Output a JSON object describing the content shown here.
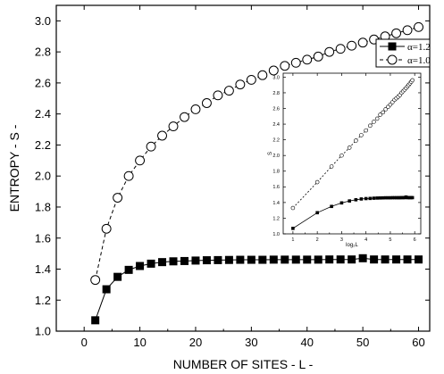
{
  "chart_data": [
    {
      "id": "main",
      "type": "line",
      "title": "",
      "xlabel": "NUMBER OF SITES - L -",
      "ylabel": "ENTROPY  - S -",
      "xlim": [
        -5,
        62
      ],
      "ylim": [
        1.0,
        3.1
      ],
      "xticks": [
        0,
        10,
        20,
        30,
        40,
        50,
        60
      ],
      "yticks": [
        1.0,
        1.2,
        1.4,
        1.6,
        1.8,
        2.0,
        2.2,
        2.4,
        2.6,
        2.8,
        3.0
      ],
      "ytick_labels": [
        "1.0",
        "1.2",
        "1.4",
        "1.6",
        "1.8",
        "2.0",
        "2.2",
        "2.4",
        "2.6",
        "2.8",
        "3.0"
      ],
      "grid": false,
      "legend": "top-right",
      "series": [
        {
          "name": "α=1.2",
          "marker": "filled-square",
          "line": "solid",
          "x": [
            2,
            4,
            6,
            8,
            10,
            12,
            14,
            16,
            18,
            20,
            22,
            24,
            26,
            28,
            30,
            32,
            34,
            36,
            38,
            40,
            42,
            44,
            46,
            48,
            50,
            52,
            54,
            56,
            58,
            60
          ],
          "y": [
            1.07,
            1.27,
            1.35,
            1.395,
            1.42,
            1.435,
            1.445,
            1.45,
            1.452,
            1.455,
            1.457,
            1.458,
            1.459,
            1.46,
            1.46,
            1.46,
            1.461,
            1.461,
            1.461,
            1.461,
            1.461,
            1.462,
            1.462,
            1.462,
            1.47,
            1.462,
            1.462,
            1.462,
            1.462,
            1.462
          ]
        },
        {
          "name": "α=1.0",
          "marker": "open-circle",
          "line": "dashed",
          "x": [
            2,
            4,
            6,
            8,
            10,
            12,
            14,
            16,
            18,
            20,
            22,
            24,
            26,
            28,
            30,
            32,
            34,
            36,
            38,
            40,
            42,
            44,
            46,
            48,
            50,
            52,
            54,
            56,
            58,
            60
          ],
          "y": [
            1.33,
            1.66,
            1.86,
            2.0,
            2.1,
            2.19,
            2.26,
            2.32,
            2.38,
            2.43,
            2.47,
            2.52,
            2.55,
            2.59,
            2.62,
            2.65,
            2.68,
            2.71,
            2.73,
            2.75,
            2.77,
            2.8,
            2.82,
            2.84,
            2.86,
            2.88,
            2.9,
            2.92,
            2.94,
            2.96
          ]
        }
      ]
    },
    {
      "id": "inset",
      "type": "line",
      "title": "",
      "xlabel": "log₂L",
      "ylabel": "S",
      "xlim": [
        0.6,
        6.25
      ],
      "ylim": [
        1.0,
        3.05
      ],
      "xticks": [
        1,
        2,
        3,
        4,
        5,
        6
      ],
      "yticks": [
        1.0,
        1.2,
        1.4,
        1.6,
        1.8,
        2.0,
        2.2,
        2.4,
        2.6,
        2.8,
        3.0
      ],
      "ytick_labels": [
        "1.0",
        "1.2",
        "1.4",
        "1.6",
        "1.8",
        "2.0",
        "2.2",
        "2.4",
        "2.6",
        "2.8",
        "3.0"
      ],
      "grid": false,
      "series": [
        {
          "marker": "filled-square",
          "line": "solid",
          "x": [
            1.0,
            2.0,
            2.585,
            3.0,
            3.322,
            3.585,
            3.807,
            4.0,
            4.17,
            4.322,
            4.459,
            4.585,
            4.7,
            4.807,
            4.907,
            5.0,
            5.087,
            5.17,
            5.248,
            5.322,
            5.392,
            5.459,
            5.524,
            5.585,
            5.644,
            5.7,
            5.755,
            5.807,
            5.858,
            5.907
          ],
          "y": [
            1.07,
            1.27,
            1.35,
            1.395,
            1.42,
            1.435,
            1.445,
            1.45,
            1.452,
            1.455,
            1.457,
            1.458,
            1.459,
            1.46,
            1.46,
            1.46,
            1.461,
            1.461,
            1.461,
            1.461,
            1.461,
            1.462,
            1.462,
            1.462,
            1.47,
            1.462,
            1.462,
            1.462,
            1.462,
            1.462
          ]
        },
        {
          "marker": "open-circle",
          "line": "dashed",
          "x": [
            1.0,
            2.0,
            2.585,
            3.0,
            3.322,
            3.585,
            3.807,
            4.0,
            4.17,
            4.322,
            4.459,
            4.585,
            4.7,
            4.807,
            4.907,
            5.0,
            5.087,
            5.17,
            5.248,
            5.322,
            5.392,
            5.459,
            5.524,
            5.585,
            5.644,
            5.7,
            5.755,
            5.807,
            5.858,
            5.907
          ],
          "y": [
            1.33,
            1.66,
            1.86,
            2.0,
            2.1,
            2.19,
            2.26,
            2.32,
            2.38,
            2.43,
            2.47,
            2.52,
            2.55,
            2.59,
            2.62,
            2.65,
            2.68,
            2.71,
            2.73,
            2.75,
            2.77,
            2.8,
            2.82,
            2.84,
            2.86,
            2.88,
            2.9,
            2.92,
            2.94,
            2.96
          ]
        }
      ]
    }
  ]
}
